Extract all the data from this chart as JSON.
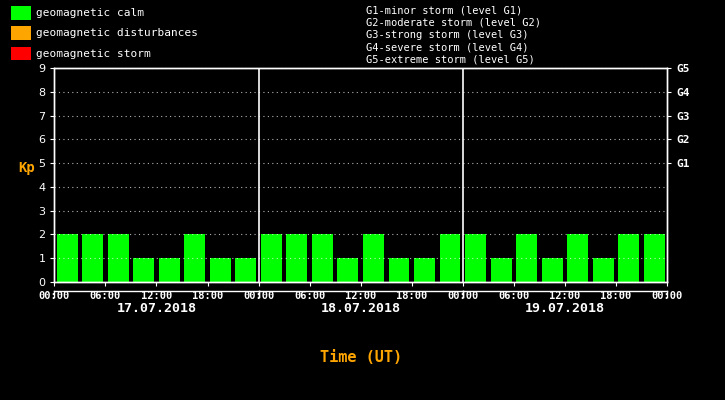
{
  "background_color": "#000000",
  "plot_bg_color": "#000000",
  "bar_color_calm": "#00ff00",
  "bar_color_disturbance": "#ffa500",
  "bar_color_storm": "#ff0000",
  "text_color": "#ffffff",
  "xlabel_color": "#ffa500",
  "ylabel_color": "#ffa500",
  "kp_values_day1": [
    2,
    2,
    2,
    1,
    1,
    2,
    1,
    1
  ],
  "kp_values_day2": [
    2,
    2,
    2,
    1,
    2,
    1,
    1,
    2
  ],
  "kp_values_day3": [
    2,
    1,
    2,
    1,
    2,
    1,
    2,
    2
  ],
  "days": [
    "17.07.2018",
    "18.07.2018",
    "19.07.2018"
  ],
  "ylim": [
    0,
    9
  ],
  "yticks": [
    0,
    1,
    2,
    3,
    4,
    5,
    6,
    7,
    8,
    9
  ],
  "right_ticks": [
    5,
    6,
    7,
    8,
    9
  ],
  "right_labels": [
    "G1",
    "G2",
    "G3",
    "G4",
    "G5"
  ],
  "legend_items": [
    {
      "label": "geomagnetic calm",
      "color": "#00ff00"
    },
    {
      "label": "geomagnetic disturbances",
      "color": "#ffa500"
    },
    {
      "label": "geomagnetic storm",
      "color": "#ff0000"
    }
  ],
  "storm_labels": [
    "G1-minor storm (level G1)",
    "G2-moderate storm (level G2)",
    "G3-strong storm (level G3)",
    "G4-severe storm (level G4)",
    "G5-extreme storm (level G5)"
  ],
  "xlabel": "Time (UT)",
  "ylabel": "Kp",
  "n_days": 3,
  "bars_per_day": 8,
  "time_labels": [
    "00:00",
    "06:00",
    "12:00",
    "18:00"
  ]
}
